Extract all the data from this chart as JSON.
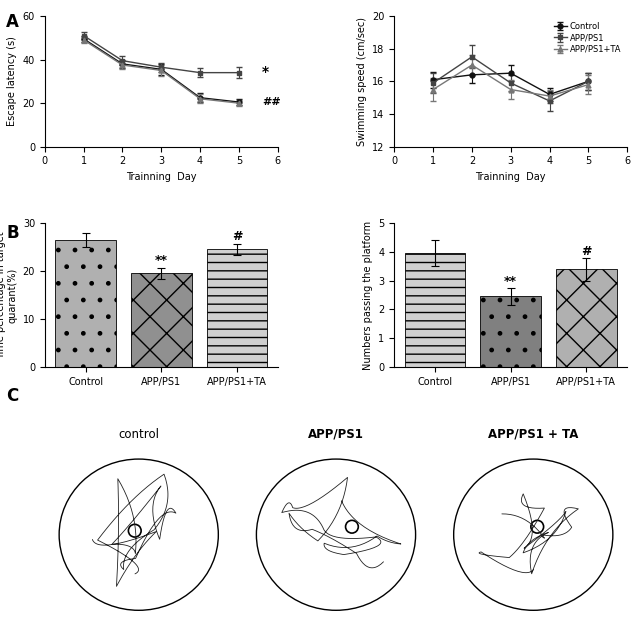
{
  "escape_latency": {
    "days": [
      1,
      2,
      3,
      4,
      5
    ],
    "control": [
      49.5,
      38.0,
      35.5,
      22.5,
      20.5
    ],
    "control_err": [
      1.5,
      2.0,
      2.5,
      2.0,
      1.5
    ],
    "appps1": [
      51.0,
      39.5,
      36.5,
      34.0,
      34.0
    ],
    "appps1_err": [
      1.5,
      2.0,
      2.0,
      2.0,
      2.5
    ],
    "appps1ta": [
      49.0,
      37.5,
      35.0,
      22.0,
      20.0
    ],
    "appps1ta_err": [
      1.5,
      2.0,
      2.5,
      2.0,
      1.5
    ],
    "ylabel": "Escape latency (s)",
    "xlabel": "Trainning  Day",
    "ylim": [
      0,
      60
    ],
    "xlim": [
      0,
      6
    ]
  },
  "swimming_speed": {
    "days": [
      1,
      2,
      3,
      4,
      5
    ],
    "control": [
      16.1,
      16.4,
      16.5,
      15.2,
      16.0
    ],
    "control_err": [
      0.5,
      0.5,
      0.5,
      0.4,
      0.5
    ],
    "appps1": [
      15.9,
      17.5,
      15.9,
      14.8,
      16.0
    ],
    "appps1_err": [
      0.6,
      0.7,
      0.5,
      0.6,
      0.5
    ],
    "appps1ta": [
      15.5,
      17.0,
      15.5,
      15.1,
      15.8
    ],
    "appps1ta_err": [
      0.7,
      0.6,
      0.6,
      0.4,
      0.6
    ],
    "ylabel": "Swimming speed (cm/sec)",
    "xlabel": "Trainning  Day",
    "ylim": [
      12,
      20
    ],
    "xlim": [
      0,
      6
    ]
  },
  "legend": {
    "control_label": "Control",
    "appps1_label": "APP/PS1",
    "appps1ta_label": "APP/PS1+TA"
  },
  "time_percentage": {
    "categories": [
      "Control",
      "APP/PS1",
      "APP/PS1+TA"
    ],
    "values": [
      26.5,
      19.5,
      24.5
    ],
    "errors": [
      1.5,
      1.2,
      1.2
    ],
    "ylabel": "Time percentage in target\nquarant(%)",
    "ylim": [
      0,
      30
    ],
    "yticks": [
      0,
      10,
      20,
      30
    ],
    "annotations": [
      "",
      "**",
      "#"
    ],
    "hatches": [
      ".",
      "x",
      "--"
    ],
    "bar_colors": [
      "#b0b0b0",
      "#909090",
      "#d0d0d0"
    ]
  },
  "platform_crossings": {
    "categories": [
      "Control",
      "APP/PS1",
      "APP/PS1+TA"
    ],
    "values": [
      3.95,
      2.45,
      3.4
    ],
    "errors": [
      0.45,
      0.3,
      0.4
    ],
    "ylabel": "Numbers passing the platform",
    "ylim": [
      0,
      5
    ],
    "yticks": [
      0,
      1,
      2,
      3,
      4,
      5
    ],
    "annotations": [
      "",
      "**",
      "#"
    ],
    "hatches": [
      "--",
      ".",
      "x"
    ],
    "bar_colors": [
      "#d0d0d0",
      "#808080",
      "#b0b0b0"
    ]
  },
  "section_labels": [
    "A",
    "B",
    "C"
  ],
  "track_titles": [
    "control",
    "APP/PS1",
    "APP/PS1 + TA"
  ],
  "track_title_bold": [
    false,
    true,
    true
  ]
}
